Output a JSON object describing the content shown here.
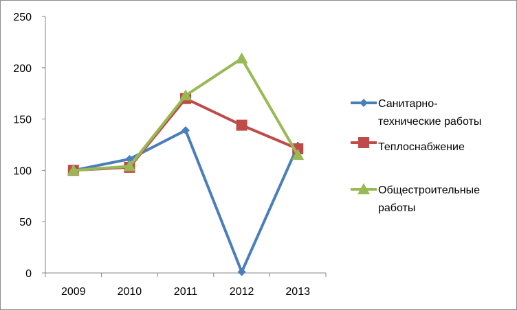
{
  "chart_data": {
    "type": "line",
    "title": "",
    "xlabel": "",
    "ylabel": "",
    "categories": [
      "2009",
      "2010",
      "2011",
      "2012",
      "2013"
    ],
    "ylim": [
      0,
      250
    ],
    "yticks": [
      0,
      50,
      100,
      150,
      200,
      250
    ],
    "grid": false,
    "legend_position": "right",
    "series": [
      {
        "name_lines": [
          "Санитарно-",
          "технические работы"
        ],
        "values": [
          100,
          111,
          139,
          1,
          124
        ],
        "color": "#4a7ebb",
        "marker": "diamond"
      },
      {
        "name_lines": [
          "Теплоснабжение"
        ],
        "values": [
          100,
          103,
          170,
          144,
          121
        ],
        "color": "#be4b48",
        "marker": "square"
      },
      {
        "name_lines": [
          "Общестроительные",
          "работы"
        ],
        "values": [
          100,
          104,
          173,
          209,
          115
        ],
        "color": "#98b954",
        "marker": "triangle"
      }
    ]
  }
}
